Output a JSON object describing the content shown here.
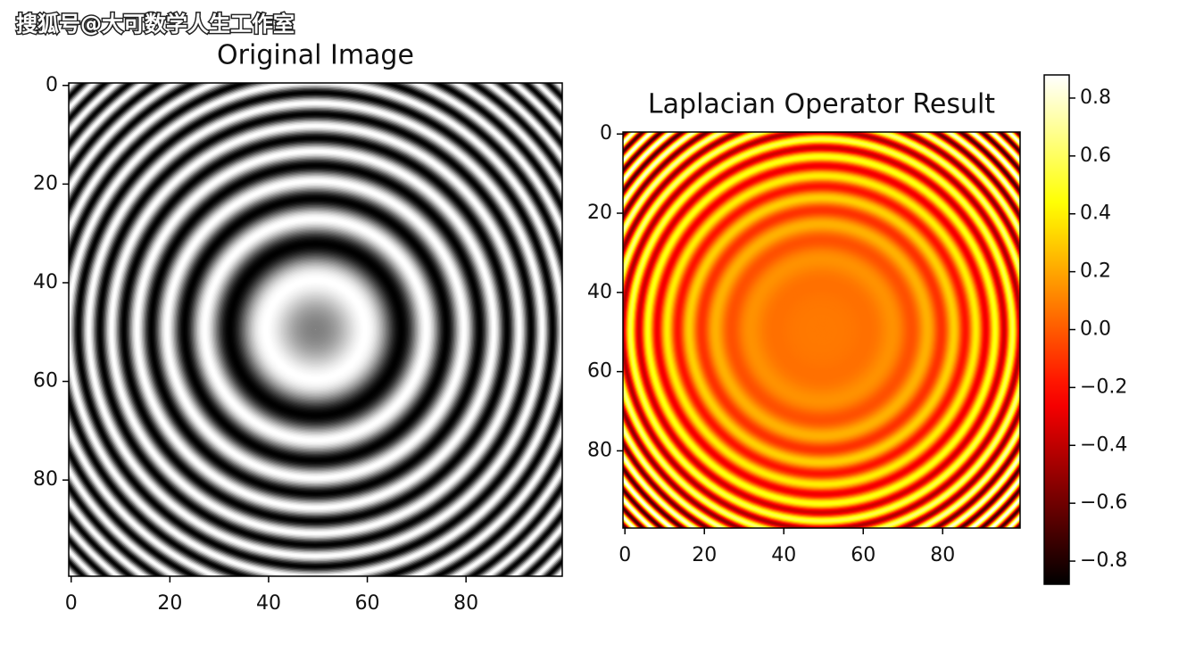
{
  "watermark": "搜狐号@大可数学人生工作室",
  "chart_data": [
    {
      "type": "image",
      "title": "Original Image",
      "colormap": "gray",
      "xlim": [
        -0.5,
        99.5
      ],
      "ylim": [
        99.5,
        -0.5
      ],
      "xticks": [
        0,
        20,
        40,
        60,
        80
      ],
      "yticks": [
        0,
        20,
        40,
        60,
        80
      ]
    },
    {
      "type": "image",
      "title": "Laplacian Operator Result",
      "colormap": "hot",
      "xlim": [
        -0.5,
        99.5
      ],
      "ylim": [
        99.5,
        -0.5
      ],
      "xticks": [
        0,
        20,
        40,
        60,
        80
      ],
      "yticks": [
        0,
        20,
        40,
        60,
        80
      ]
    },
    {
      "type": "colorbar",
      "colormap": "hot",
      "ylim": [
        -0.88,
        0.88
      ],
      "yticks": [
        {
          "value": -0.8,
          "label": "−0.8"
        },
        {
          "value": -0.6,
          "label": "−0.6"
        },
        {
          "value": -0.4,
          "label": "−0.4"
        },
        {
          "value": -0.2,
          "label": "−0.2"
        },
        {
          "value": 0,
          "label": "0.0"
        },
        0.2,
        0.4,
        0.6,
        0.8
      ]
    }
  ]
}
